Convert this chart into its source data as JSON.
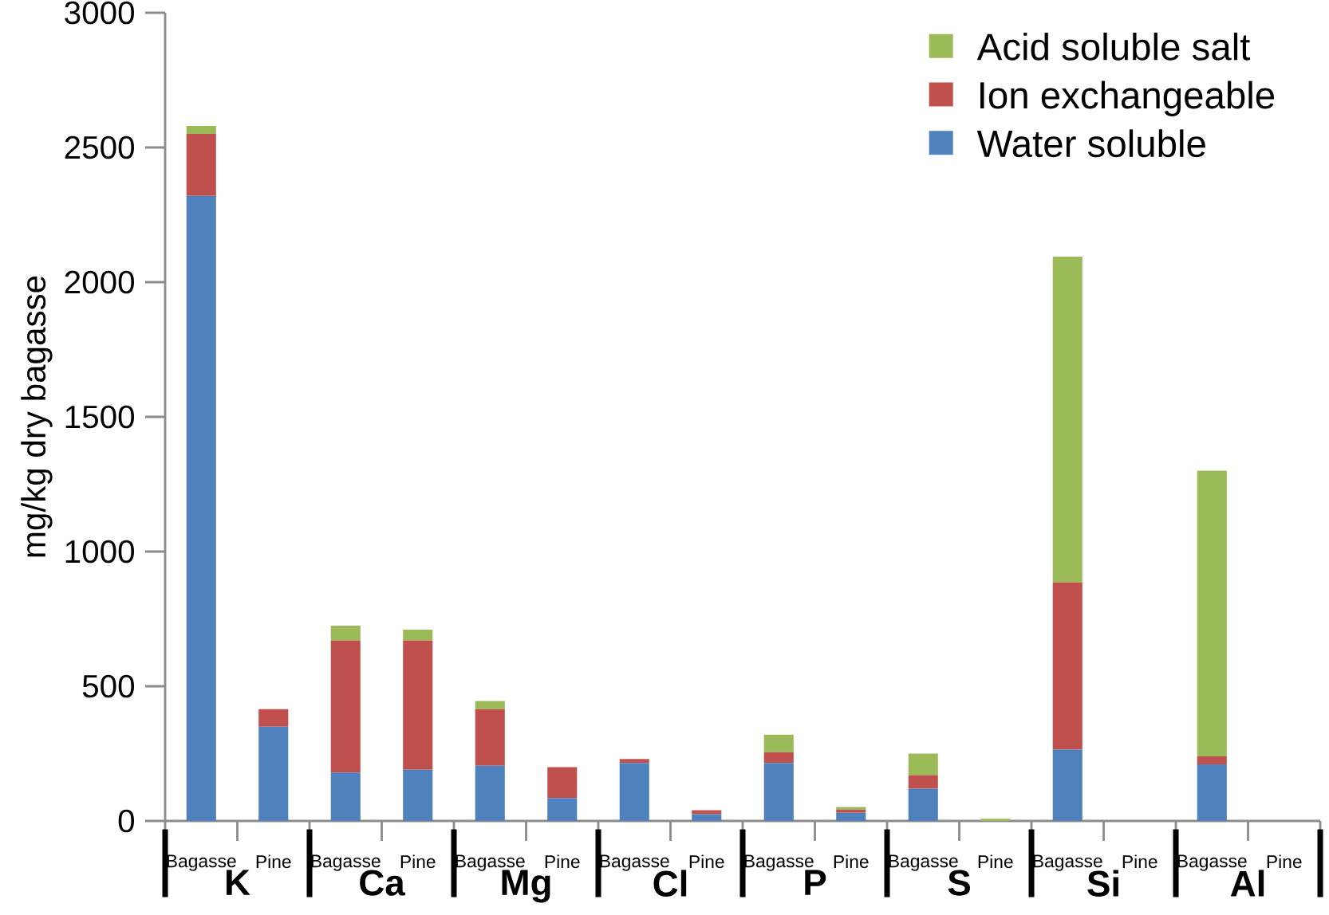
{
  "chart_data": {
    "type": "bar",
    "stacked": true,
    "ylabel": "mg/kg dry bagasse",
    "categories": [
      "Bagasse",
      "Pine",
      "Bagasse",
      "Pine",
      "Bagasse",
      "Pine",
      "Bagasse",
      "Pine",
      "Bagasse",
      "Pine",
      "Bagasse",
      "Pine",
      "Bagasse",
      "Pine",
      "Bagasse",
      "Pine"
    ],
    "annotations": [
      "K",
      "Ca",
      "Mg",
      "Cl",
      "P",
      "S",
      "Si",
      "Al"
    ],
    "series": [
      {
        "name": "Water soluble",
        "color": "#4f81bd",
        "values": [
          2320,
          350,
          180,
          190,
          205,
          85,
          215,
          25,
          215,
          30,
          120,
          0,
          265,
          0,
          210,
          0
        ]
      },
      {
        "name": "Ion exchangeable",
        "color": "#c0504d",
        "values": [
          230,
          65,
          490,
          480,
          210,
          115,
          15,
          15,
          40,
          12,
          50,
          0,
          620,
          0,
          30,
          0
        ]
      },
      {
        "name": "Acid soluble salt",
        "color": "#9bbb59",
        "values": [
          30,
          0,
          55,
          40,
          30,
          0,
          0,
          0,
          65,
          10,
          80,
          8,
          1210,
          null,
          1060,
          0
        ]
      }
    ],
    "ylim": [
      0,
      3000
    ],
    "yticks": [
      0,
      500,
      1000,
      1500,
      2000,
      2500,
      3000
    ],
    "legend": "top right"
  }
}
